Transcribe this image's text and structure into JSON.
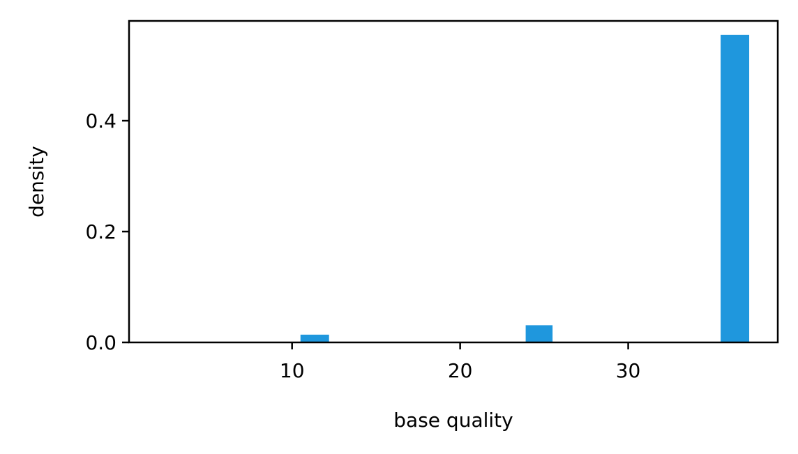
{
  "chart_data": {
    "type": "bar",
    "title": "",
    "xlabel": "base quality",
    "ylabel": "density",
    "xlim": [
      0.3,
      38.9
    ],
    "ylim": [
      0,
      0.58
    ],
    "xticks": [
      10,
      20,
      30
    ],
    "yticks": [
      0.0,
      0.2,
      0.4
    ],
    "xtick_labels": [
      "10",
      "20",
      "30"
    ],
    "ytick_labels": [
      "0.0",
      "0.2",
      "0.4"
    ],
    "grid": false,
    "bar_color": "#1f97dd",
    "series": [
      {
        "bins": [
          {
            "x0": 10.5,
            "x1": 12.2,
            "value": 0.014
          },
          {
            "x0": 23.9,
            "x1": 25.5,
            "value": 0.031
          },
          {
            "x0": 35.5,
            "x1": 37.2,
            "value": 0.555
          }
        ]
      }
    ]
  }
}
